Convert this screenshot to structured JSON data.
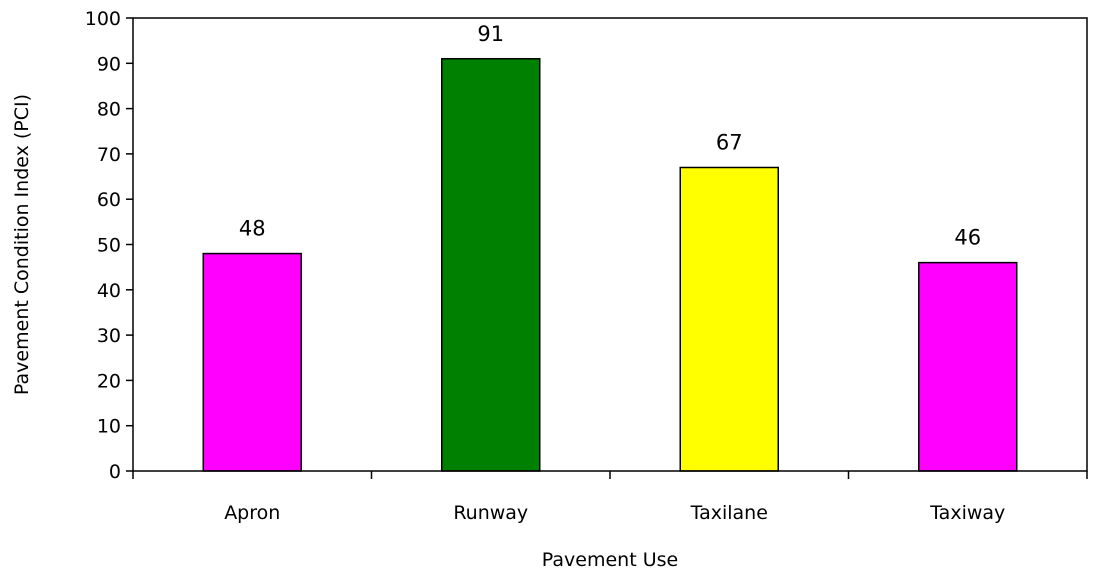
{
  "chart_data": {
    "type": "bar",
    "categories": [
      "Apron",
      "Runway",
      "Taxilane",
      "Taxiway"
    ],
    "values": [
      48,
      91,
      67,
      46
    ],
    "bar_colors": [
      "#ff00ff",
      "#008000",
      "#ffff00",
      "#ff00ff"
    ],
    "data_labels": [
      "48",
      "91",
      "67",
      "46"
    ],
    "title": "",
    "xlabel": "Pavement Use",
    "ylabel": "Pavement Condition Index (PCI)",
    "ylim": [
      0,
      100
    ],
    "yticks": [
      0,
      10,
      20,
      30,
      40,
      50,
      60,
      70,
      80,
      90,
      100
    ],
    "grid": false,
    "legend": "none",
    "colors": {
      "axis": "#000000",
      "bar_outline": "#000000",
      "background": "#ffffff"
    }
  }
}
